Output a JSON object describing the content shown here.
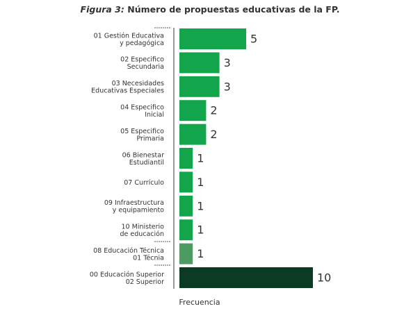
{
  "chart_data": {
    "type": "bar",
    "orientation": "horizontal",
    "title_label": "Figura 3:",
    "title": "Número de propuestas educativas de la FP.",
    "x_label": "Frecuencia",
    "categories": [
      "01 Gestión Educativa\ny pedagógica",
      "02 Especifico\nSecundaria",
      "03 Necesidades\nEducativas Especiales",
      "04 Especifico\nInicial",
      "05 Especifico\nPrimaria",
      "06 Bienestar\nEstudiantil",
      "07 Currículo",
      "09 Infraestructura\ny equipamiento",
      "10 Ministerio\nde educación",
      "08 Educación Técnica\n01 Técnia",
      "00 Educación Superior\n02 Superior"
    ],
    "values": [
      5,
      3,
      3,
      2,
      2,
      1,
      1,
      1,
      1,
      1,
      10
    ],
    "colors": [
      "#13a54b",
      "#13a54b",
      "#13a54b",
      "#13a54b",
      "#13a54b",
      "#13a54b",
      "#13a54b",
      "#13a54b",
      "#13a54b",
      "#4e9a63",
      "#0b3b22"
    ],
    "xlim": [
      0,
      10
    ]
  }
}
